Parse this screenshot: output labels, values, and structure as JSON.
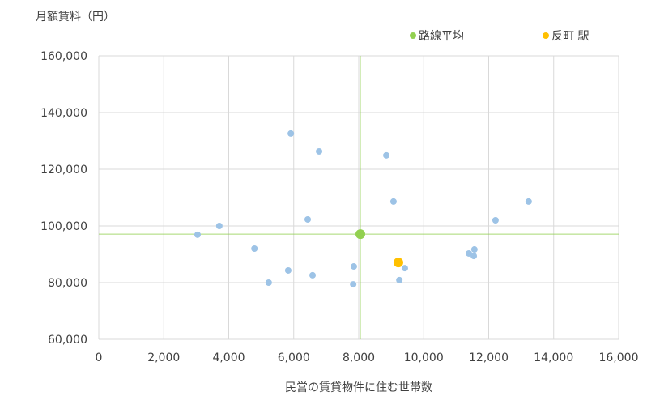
{
  "chart_data": {
    "type": "scatter",
    "ylabel": "月額賃料（円）",
    "xlabel": "民営の賃貸物件に住む世帯数",
    "xlim": [
      0,
      16000
    ],
    "ylim": [
      60000,
      160000
    ],
    "xticks": [
      "0",
      "2,000",
      "4,000",
      "6,000",
      "8,000",
      "10,000",
      "12,000",
      "14,000",
      "16,000"
    ],
    "yticks": [
      "60,000",
      "80,000",
      "100,000",
      "120,000",
      "140,000",
      "160,000"
    ],
    "grid": true,
    "legend_placement": "top-right",
    "series": [
      {
        "color": "#9dc3e6",
        "points": [
          [
            3040,
            96900
          ],
          [
            3710,
            100000
          ],
          [
            4790,
            92000
          ],
          [
            5230,
            80000
          ],
          [
            5830,
            84300
          ],
          [
            5910,
            132600
          ],
          [
            6430,
            102300
          ],
          [
            6580,
            82600
          ],
          [
            6780,
            126300
          ],
          [
            7830,
            79400
          ],
          [
            7850,
            85700
          ],
          [
            8850,
            124900
          ],
          [
            9070,
            108600
          ],
          [
            9250,
            80900
          ],
          [
            9420,
            85100
          ],
          [
            11390,
            90300
          ],
          [
            11540,
            89400
          ],
          [
            11560,
            91700
          ],
          [
            12210,
            102000
          ],
          [
            13230,
            108600
          ]
        ]
      },
      {
        "name": "路線平均",
        "color": "#92d050",
        "points": [
          [
            8050,
            97100
          ]
        ]
      },
      {
        "name": "反町 駅",
        "color": "#ffc000",
        "points": [
          [
            9220,
            87100
          ]
        ]
      }
    ],
    "reference_lines": {
      "x": 8050,
      "y": 97100,
      "color": "#92d050"
    }
  }
}
